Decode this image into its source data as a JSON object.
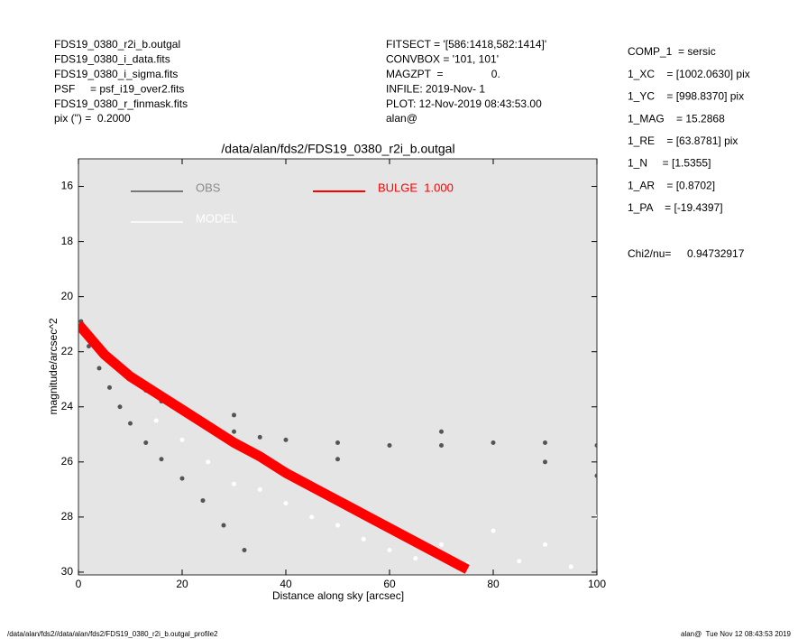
{
  "header_left": [
    "FDS19_0380_r2i_b.outgal",
    "FDS19_0380_i_data.fits",
    "FDS19_0380_i_sigma.fits",
    "PSF     = psf_i19_over2.fits",
    "FDS19_0380_r_finmask.fits",
    "pix (\") =  0.2000"
  ],
  "header_middle": [
    "FITSECT = '[586:1418,582:1414]'",
    "CONVBOX = '101, 101'",
    "MAGZPT  =                0.",
    "INFILE: 2019-Nov- 1",
    "PLOT: 12-Nov-2019 08:43:53.00",
    "alan@"
  ],
  "header_right": [
    "COMP_1  = sersic",
    "1_XC    = [1002.0630] pix",
    "1_YC    = [998.8370] pix",
    "1_MAG    = 15.2868",
    "1_RE    = [63.8781] pix",
    "1_N     = [1.5355]",
    "1_AR    = [0.8702]",
    "1_PA    = [-19.4397]"
  ],
  "chi2_label": "Chi2/nu=",
  "chi2_value": "0.94732917",
  "footer_left": "/data/alan/fds2//data/alan/fds2/FDS19_0380_r2i_b.outgal_profile2",
  "footer_right": "alan@  Tue Nov 12 08:43:53 2019",
  "chart_data": {
    "type": "scatter",
    "title": "/data/alan/fds2/FDS19_0380_r2i_b.outgal",
    "x_label": "Distance along sky [arcsec]",
    "y_label": "magnitude/arcsec^2",
    "xlim": [
      0,
      100
    ],
    "xticks": [
      0,
      20,
      40,
      60,
      80,
      100
    ],
    "ylim": [
      30.1,
      15
    ],
    "yticks": [
      16,
      18,
      20,
      22,
      24,
      26,
      28,
      30
    ],
    "background": "#e5e5e5",
    "series": [
      {
        "name": "OBS",
        "color": "#555555",
        "style": "points",
        "x": [
          0.5,
          2,
          4,
          6,
          8,
          10,
          13,
          16,
          20,
          25,
          30,
          35,
          40,
          50,
          60,
          70,
          80,
          90,
          100,
          2,
          4,
          6,
          8,
          10,
          13,
          16,
          20,
          24,
          28,
          32,
          30,
          50,
          70,
          90,
          100
        ],
        "values": [
          20.9,
          21.4,
          21.9,
          22.3,
          22.7,
          23.0,
          23.4,
          23.8,
          24.2,
          24.6,
          24.9,
          25.1,
          25.2,
          25.3,
          25.4,
          25.4,
          25.3,
          25.3,
          25.4,
          21.8,
          22.6,
          23.3,
          24.0,
          24.6,
          25.3,
          25.9,
          26.6,
          27.4,
          28.3,
          29.2,
          24.3,
          25.9,
          24.9,
          26.0,
          26.5
        ]
      },
      {
        "name": "MODEL",
        "color": "#ffffff",
        "style": "points",
        "x": [
          15,
          20,
          25,
          30,
          35,
          40,
          45,
          50,
          55,
          60,
          65,
          70,
          75,
          80,
          85,
          90,
          95,
          100
        ],
        "values": [
          24.5,
          25.2,
          26.0,
          26.8,
          27.0,
          27.5,
          28.0,
          28.3,
          28.8,
          29.2,
          29.5,
          29.0,
          29.7,
          28.5,
          29.6,
          29.0,
          29.8,
          28.0
        ]
      },
      {
        "name": "BULGE  1.000",
        "color": "#ff0000",
        "style": "band",
        "x": [
          0,
          5,
          10,
          15,
          20,
          25,
          30,
          35,
          40,
          45,
          50,
          55,
          60,
          65,
          70,
          75
        ],
        "values": [
          21.0,
          22.1,
          22.9,
          23.5,
          24.1,
          24.7,
          25.3,
          25.8,
          26.4,
          26.9,
          27.4,
          27.9,
          28.4,
          28.9,
          29.4,
          29.9
        ]
      }
    ]
  }
}
